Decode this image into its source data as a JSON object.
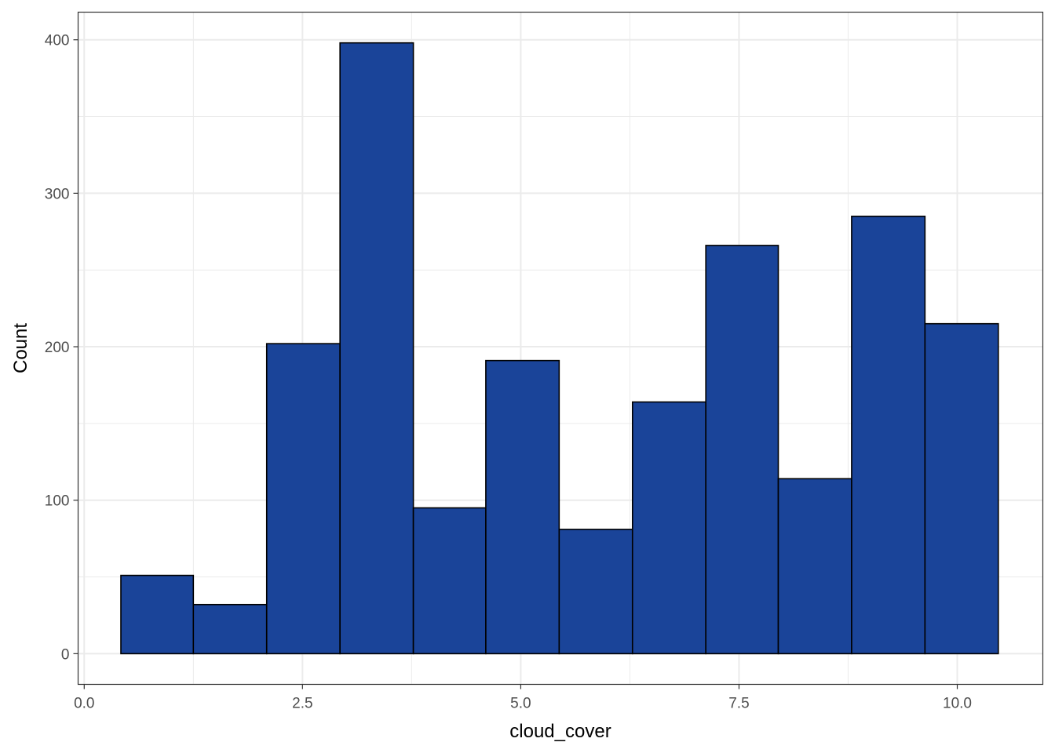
{
  "chart_data": {
    "type": "bar",
    "xlabel": "cloud_cover",
    "ylabel": "Count",
    "xlim": [
      -0.07,
      10.98
    ],
    "ylim": [
      -20,
      418
    ],
    "x_ticks": [
      0.0,
      2.5,
      5.0,
      7.5,
      10.0
    ],
    "x_tick_labels": [
      "0.0",
      "2.5",
      "5.0",
      "7.5",
      "10.0"
    ],
    "y_ticks": [
      0,
      100,
      200,
      300,
      400
    ],
    "y_tick_labels": [
      "0",
      "100",
      "200",
      "300",
      "400"
    ],
    "bins": [
      {
        "x0": 0.42,
        "x1": 1.25,
        "value": 51
      },
      {
        "x0": 1.25,
        "x1": 2.09,
        "value": 32
      },
      {
        "x0": 2.09,
        "x1": 2.93,
        "value": 202
      },
      {
        "x0": 2.93,
        "x1": 3.77,
        "value": 398
      },
      {
        "x0": 3.77,
        "x1": 4.6,
        "value": 95
      },
      {
        "x0": 4.6,
        "x1": 5.44,
        "value": 191
      },
      {
        "x0": 5.44,
        "x1": 6.28,
        "value": 81
      },
      {
        "x0": 6.28,
        "x1": 7.12,
        "value": 164
      },
      {
        "x0": 7.12,
        "x1": 7.95,
        "value": 266
      },
      {
        "x0": 7.95,
        "x1": 8.79,
        "value": 114
      },
      {
        "x0": 8.79,
        "x1": 9.63,
        "value": 285
      },
      {
        "x0": 9.63,
        "x1": 10.47,
        "value": 215
      }
    ],
    "grid": true,
    "colors": {
      "bar_fill": "#1a4499",
      "bar_stroke": "#000000",
      "grid": "#ebebeb",
      "panel_border": "#333333"
    }
  }
}
